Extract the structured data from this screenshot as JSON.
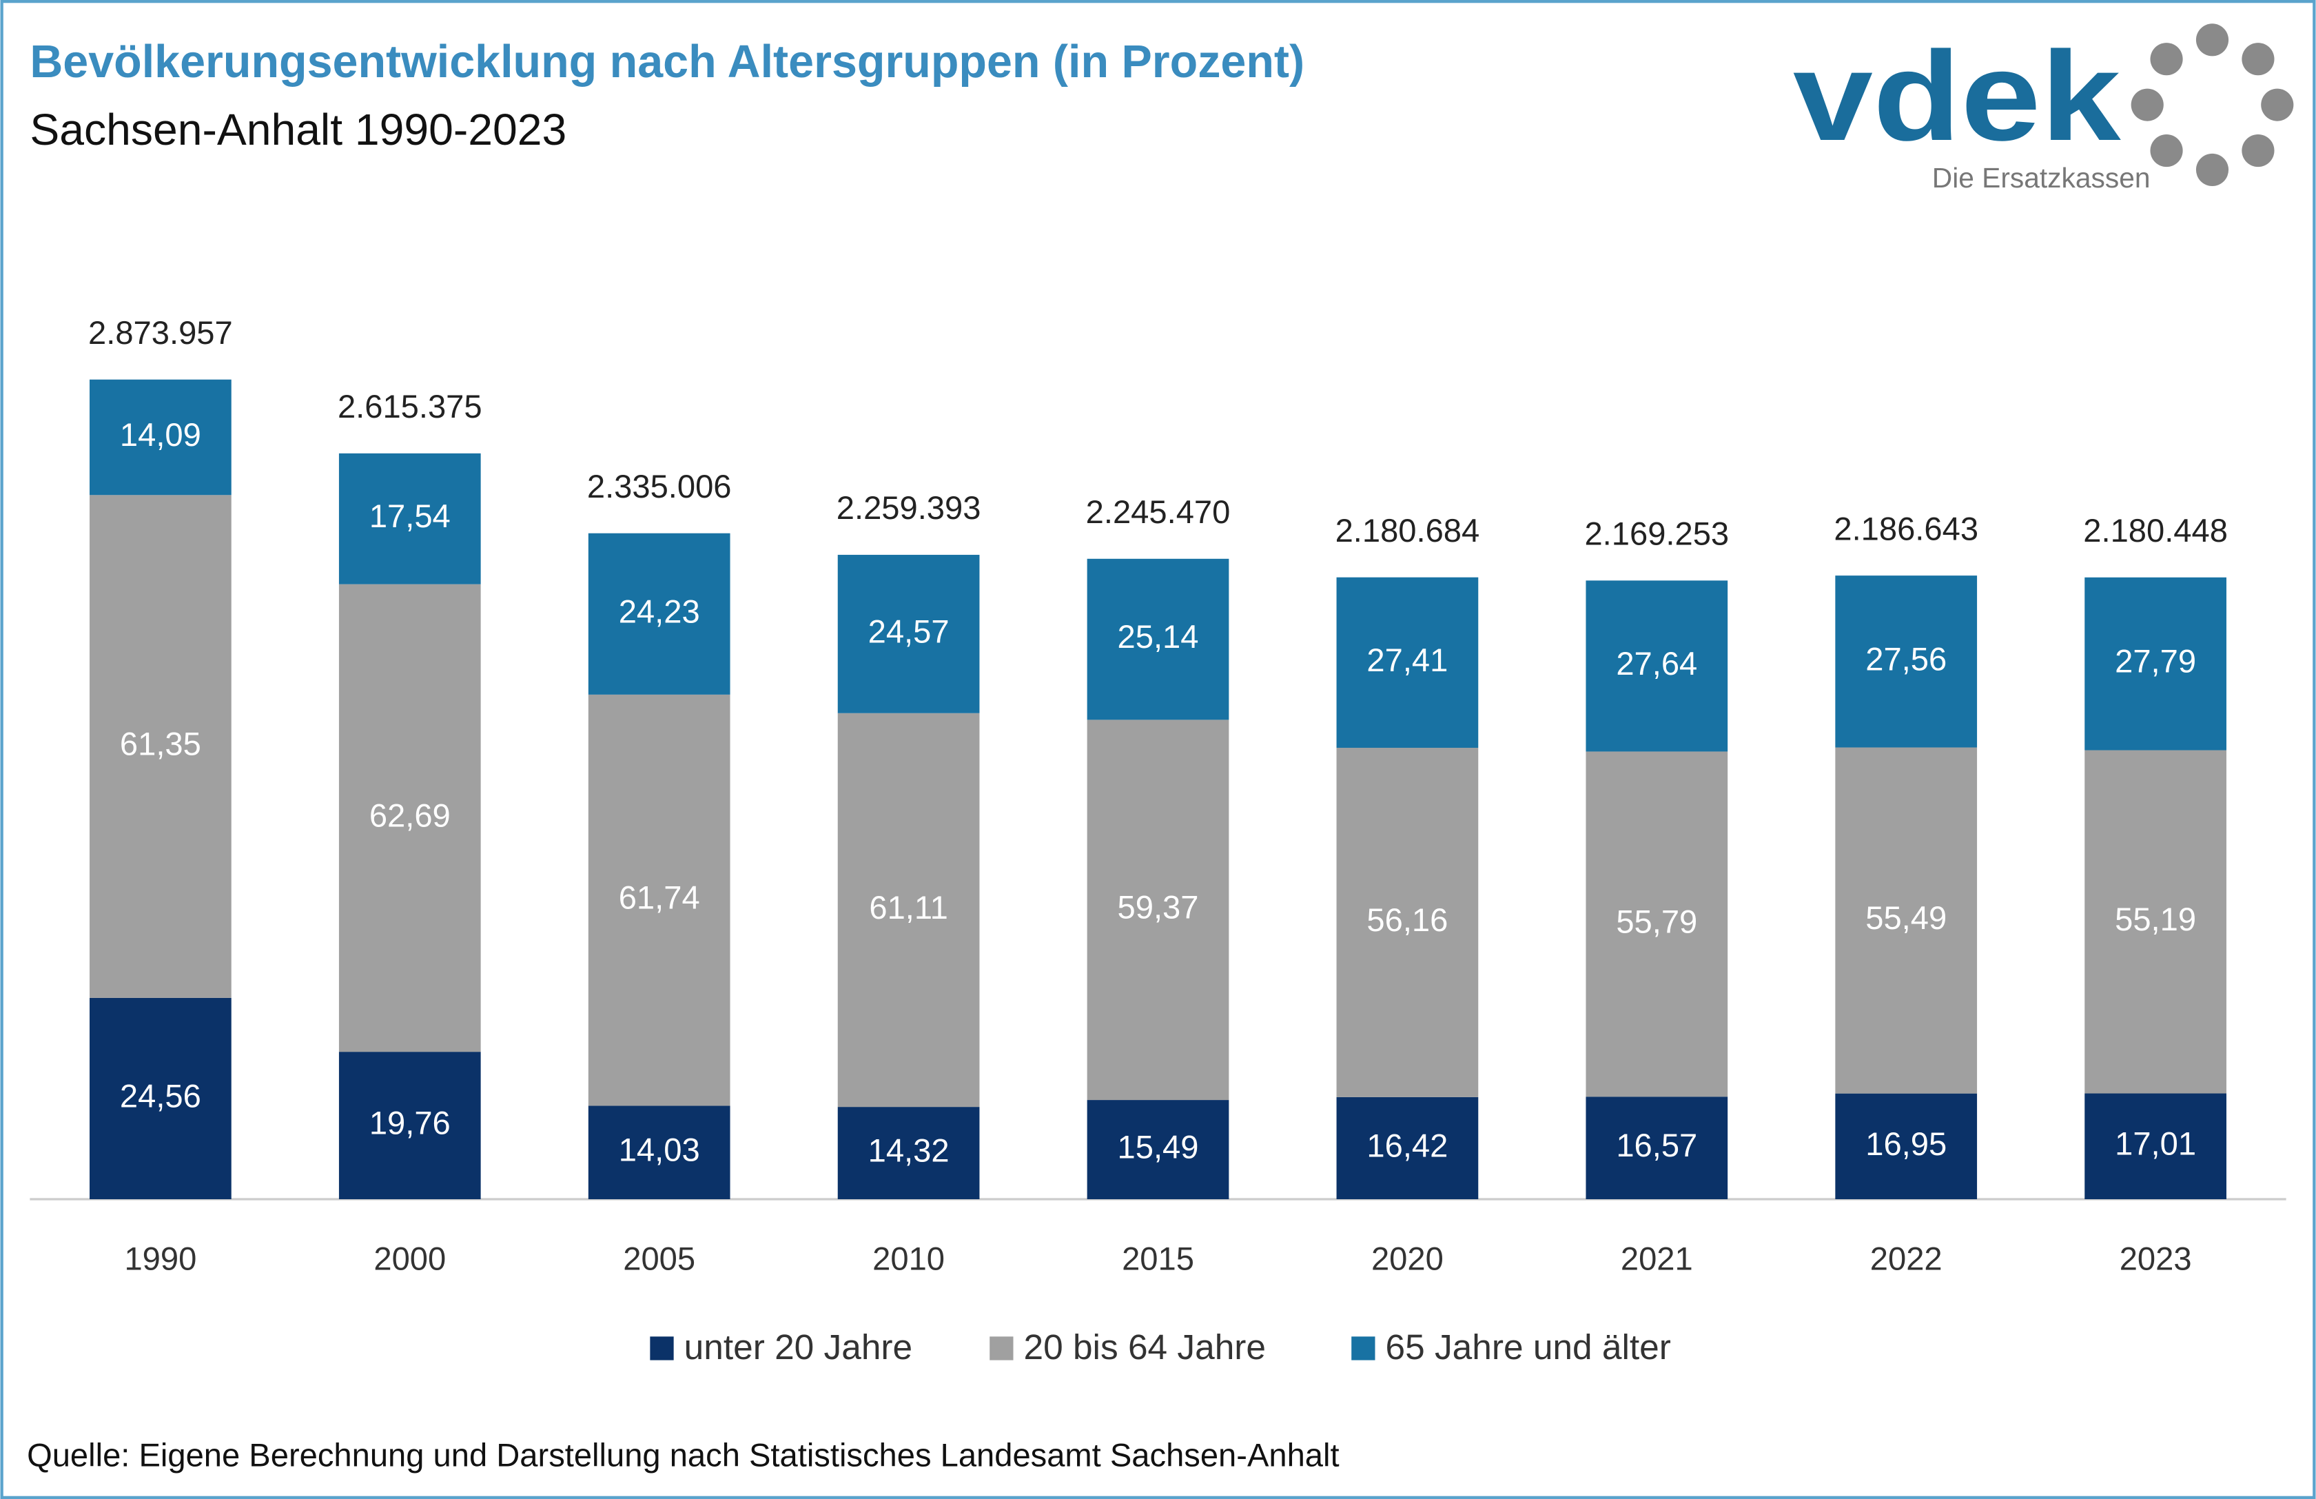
{
  "chart_data": {
    "type": "stacked-bar",
    "title": "Bevölkerungsentwicklung nach Altersgruppen (in Prozent)",
    "subtitle": "Sachsen-Anhalt 1990-2023",
    "source": "Quelle: Eigene Berechnung und Darstellung nach Statistisches Landesamt Sachsen-Anhalt",
    "logo": {
      "text": "vdek",
      "tagline": "Die Ersatzkassen"
    },
    "categories": [
      "1990",
      "2000",
      "2005",
      "2010",
      "2015",
      "2020",
      "2021",
      "2022",
      "2023"
    ],
    "totals": {
      "values": [
        2873957,
        2615375,
        2335006,
        2259393,
        2245470,
        2180684,
        2169253,
        2186643,
        2180448
      ],
      "value_labels": [
        "2.873.957",
        "2.615.375",
        "2.335.006",
        "2.259.393",
        "2.245.470",
        "2.180.684",
        "2.169.253",
        "2.186.643",
        "2.180.448"
      ]
    },
    "series": [
      {
        "name": "unter 20 Jahre",
        "color": "#0b3268",
        "values": [
          24.56,
          19.76,
          14.03,
          14.32,
          15.49,
          16.42,
          16.57,
          16.95,
          17.01
        ],
        "value_labels": [
          "24,56",
          "19,76",
          "14,03",
          "14,32",
          "15,49",
          "16,42",
          "16,57",
          "16,95",
          "17,01"
        ]
      },
      {
        "name": "20 bis 64 Jahre",
        "color": "#a0a0a0",
        "values": [
          61.35,
          62.69,
          61.74,
          61.11,
          59.37,
          56.16,
          55.79,
          55.49,
          55.19
        ],
        "value_labels": [
          "61,35",
          "62,69",
          "61,74",
          "61,11",
          "59,37",
          "56,16",
          "55,79",
          "55,49",
          "55,19"
        ]
      },
      {
        "name": "65 Jahre und älter",
        "color": "#1872a3",
        "values": [
          14.09,
          17.54,
          24.23,
          24.57,
          25.14,
          27.41,
          27.64,
          27.56,
          27.79
        ],
        "value_labels": [
          "14,09",
          "17,54",
          "24,23",
          "24,57",
          "25,14",
          "27,41",
          "27,64",
          "27,56",
          "27,79"
        ]
      }
    ],
    "legend": "bottom"
  }
}
